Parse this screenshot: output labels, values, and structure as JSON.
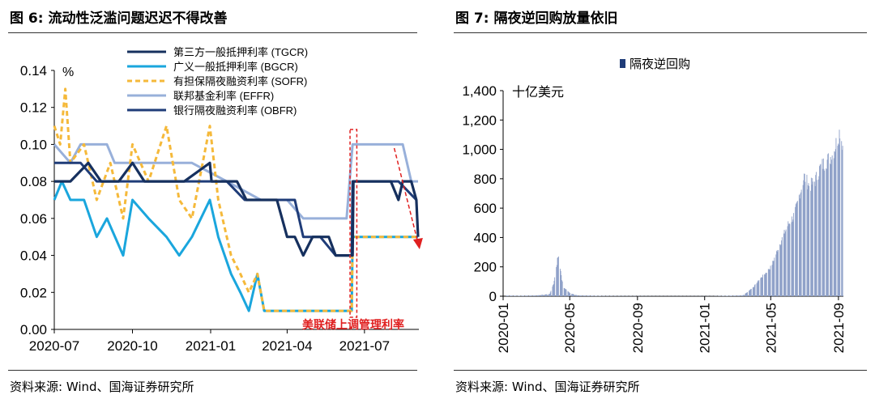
{
  "left": {
    "title": "图 6:  流动性泛滥问题迟迟不得改善",
    "source": "资料来源:  Wind、国海证券研究所",
    "unit": "%",
    "annotation": "美联储上调管理利率",
    "x_ticks": [
      "2020-07",
      "2020-10",
      "2021-01",
      "2021-04",
      "2021-07"
    ],
    "y_ticks": [
      "0.00",
      "0.02",
      "0.04",
      "0.06",
      "0.08",
      "0.10",
      "0.12",
      "0.14"
    ]
  },
  "right": {
    "title": "图 7:  隔夜逆回购放量依旧",
    "source": "资料来源:  Wind、国海证券研究所",
    "unit": "十亿美元",
    "x_ticks": [
      "2020-01",
      "2020-05",
      "2020-09",
      "2021-01",
      "2021-05",
      "2021-09"
    ],
    "y_ticks": [
      "0",
      "200",
      "400",
      "600",
      "800",
      "1,000",
      "1,200",
      "1,400"
    ]
  },
  "chart_data": [
    {
      "type": "line",
      "ylim": [
        0,
        0.14
      ],
      "xlim": [
        "2020-07-01",
        "2021-09-03"
      ],
      "legend_position": "top-right",
      "colors": {
        "TGCR": "#16305e",
        "BGCR": "#1aa6dd",
        "SOFR": "#f5b93a",
        "EFFR": "#98b0da",
        "OBFR": "#1f3c78",
        "annotation": "#e02020"
      },
      "series": [
        {
          "name": "第三方一般抵押利率 (TGCR)",
          "key": "TGCR",
          "points": [
            [
              "2020-07-01",
              0.08
            ],
            [
              "2020-07-20",
              0.08
            ],
            [
              "2020-08-10",
              0.09
            ],
            [
              "2020-08-25",
              0.08
            ],
            [
              "2020-09-15",
              0.08
            ],
            [
              "2020-10-01",
              0.09
            ],
            [
              "2020-10-15",
              0.08
            ],
            [
              "2020-11-10",
              0.08
            ],
            [
              "2020-12-01",
              0.08
            ],
            [
              "2020-12-31",
              0.09
            ],
            [
              "2021-01-02",
              0.08
            ],
            [
              "2021-02-01",
              0.08
            ],
            [
              "2021-02-12",
              0.07
            ],
            [
              "2021-03-20",
              0.07
            ],
            [
              "2021-04-01",
              0.05
            ],
            [
              "2021-04-10",
              0.05
            ],
            [
              "2021-04-20",
              0.04
            ],
            [
              "2021-05-01",
              0.05
            ],
            [
              "2021-05-20",
              0.05
            ],
            [
              "2021-05-28",
              0.04
            ],
            [
              "2021-06-17",
              0.04
            ],
            [
              "2021-06-18",
              0.08
            ],
            [
              "2021-07-20",
              0.08
            ],
            [
              "2021-08-01",
              0.08
            ],
            [
              "2021-08-10",
              0.07
            ],
            [
              "2021-08-15",
              0.08
            ],
            [
              "2021-08-25",
              0.08
            ],
            [
              "2021-08-31",
              0.07
            ],
            [
              "2021-09-02",
              0.05
            ]
          ]
        },
        {
          "name": "广义一般抵押利率 (BGCR)",
          "key": "BGCR",
          "points": [
            [
              "2020-07-01",
              0.07
            ],
            [
              "2020-07-10",
              0.08
            ],
            [
              "2020-07-20",
              0.07
            ],
            [
              "2020-08-05",
              0.07
            ],
            [
              "2020-08-20",
              0.05
            ],
            [
              "2020-09-01",
              0.06
            ],
            [
              "2020-09-20",
              0.04
            ],
            [
              "2020-10-01",
              0.07
            ],
            [
              "2020-10-20",
              0.06
            ],
            [
              "2020-11-10",
              0.05
            ],
            [
              "2020-11-25",
              0.04
            ],
            [
              "2020-12-10",
              0.05
            ],
            [
              "2020-12-31",
              0.07
            ],
            [
              "2021-01-10",
              0.05
            ],
            [
              "2021-01-25",
              0.03
            ],
            [
              "2021-02-05",
              0.02
            ],
            [
              "2021-02-15",
              0.01
            ],
            [
              "2021-02-25",
              0.03
            ],
            [
              "2021-03-05",
              0.01
            ],
            [
              "2021-03-15",
              0.01
            ],
            [
              "2021-06-16",
              0.01
            ],
            [
              "2021-06-17",
              0.05
            ],
            [
              "2021-09-02",
              0.05
            ]
          ]
        },
        {
          "name": "有担保隔夜融资利率 (SOFR)",
          "key": "SOFR",
          "points": [
            [
              "2020-07-01",
              0.11
            ],
            [
              "2020-07-08",
              0.1
            ],
            [
              "2020-07-14",
              0.13
            ],
            [
              "2020-07-20",
              0.09
            ],
            [
              "2020-08-05",
              0.1
            ],
            [
              "2020-08-20",
              0.07
            ],
            [
              "2020-09-05",
              0.09
            ],
            [
              "2020-09-20",
              0.06
            ],
            [
              "2020-10-01",
              0.1
            ],
            [
              "2020-10-20",
              0.08
            ],
            [
              "2020-11-10",
              0.11
            ],
            [
              "2020-11-25",
              0.07
            ],
            [
              "2020-12-10",
              0.06
            ],
            [
              "2020-12-31",
              0.11
            ],
            [
              "2021-01-10",
              0.07
            ],
            [
              "2021-01-25",
              0.04
            ],
            [
              "2021-02-05",
              0.03
            ],
            [
              "2021-02-15",
              0.02
            ],
            [
              "2021-02-25",
              0.03
            ],
            [
              "2021-03-05",
              0.01
            ],
            [
              "2021-03-15",
              0.01
            ],
            [
              "2021-06-16",
              0.01
            ],
            [
              "2021-06-17",
              0.05
            ],
            [
              "2021-09-02",
              0.05
            ]
          ]
        },
        {
          "name": "联邦基金利率 (EFFR)",
          "key": "EFFR",
          "points": [
            [
              "2020-07-01",
              0.1
            ],
            [
              "2020-07-20",
              0.09
            ],
            [
              "2020-08-01",
              0.1
            ],
            [
              "2020-09-01",
              0.1
            ],
            [
              "2020-09-10",
              0.09
            ],
            [
              "2020-10-20",
              0.09
            ],
            [
              "2020-11-10",
              0.09
            ],
            [
              "2020-12-10",
              0.09
            ],
            [
              "2021-01-20",
              0.08
            ],
            [
              "2021-03-01",
              0.07
            ],
            [
              "2021-04-01",
              0.07
            ],
            [
              "2021-04-20",
              0.06
            ],
            [
              "2021-05-15",
              0.06
            ],
            [
              "2021-06-10",
              0.06
            ],
            [
              "2021-06-17",
              0.1
            ],
            [
              "2021-08-15",
              0.1
            ],
            [
              "2021-08-25",
              0.08
            ],
            [
              "2021-09-02",
              0.08
            ]
          ]
        },
        {
          "name": "银行隔夜融资利率 (OBFR)",
          "key": "OBFR",
          "points": [
            [
              "2020-07-01",
              0.09
            ],
            [
              "2020-08-01",
              0.09
            ],
            [
              "2020-08-20",
              0.08
            ],
            [
              "2020-09-10",
              0.08
            ],
            [
              "2020-10-01",
              0.08
            ],
            [
              "2020-11-01",
              0.08
            ],
            [
              "2020-12-01",
              0.08
            ],
            [
              "2021-01-20",
              0.08
            ],
            [
              "2021-02-10",
              0.07
            ],
            [
              "2021-04-10",
              0.07
            ],
            [
              "2021-04-20",
              0.05
            ],
            [
              "2021-05-10",
              0.05
            ],
            [
              "2021-05-28",
              0.04
            ],
            [
              "2021-06-16",
              0.04
            ],
            [
              "2021-06-17",
              0.08
            ],
            [
              "2021-08-10",
              0.08
            ],
            [
              "2021-08-31",
              0.07
            ]
          ]
        }
      ]
    },
    {
      "type": "bar",
      "ylim": [
        0,
        1400
      ],
      "xlim": [
        "2020-01-01",
        "2021-09-10"
      ],
      "legend_position": "top",
      "series": [
        {
          "name": "隔夜逆回购",
          "color": "#8ea0c8",
          "points": [
            [
              "2020-01-05",
              4
            ],
            [
              "2020-02-01",
              3
            ],
            [
              "2020-03-01",
              5
            ],
            [
              "2020-03-25",
              15
            ],
            [
              "2020-04-01",
              90
            ],
            [
              "2020-04-05",
              180
            ],
            [
              "2020-04-08",
              260
            ],
            [
              "2020-04-10",
              285
            ],
            [
              "2020-04-13",
              200
            ],
            [
              "2020-04-16",
              120
            ],
            [
              "2020-04-20",
              60
            ],
            [
              "2020-05-01",
              20
            ],
            [
              "2020-05-15",
              5
            ],
            [
              "2020-07-01",
              2
            ],
            [
              "2020-10-01",
              1
            ],
            [
              "2021-01-15",
              1
            ],
            [
              "2021-03-10",
              5
            ],
            [
              "2021-03-20",
              30
            ],
            [
              "2021-03-31",
              70
            ],
            [
              "2021-04-10",
              120
            ],
            [
              "2021-04-20",
              160
            ],
            [
              "2021-05-01",
              210
            ],
            [
              "2021-05-10",
              300
            ],
            [
              "2021-05-20",
              400
            ],
            [
              "2021-06-01",
              510
            ],
            [
              "2021-06-10",
              560
            ],
            [
              "2021-06-17",
              640
            ],
            [
              "2021-06-30",
              850
            ],
            [
              "2021-07-10",
              780
            ],
            [
              "2021-07-20",
              820
            ],
            [
              "2021-07-30",
              920
            ],
            [
              "2021-08-10",
              960
            ],
            [
              "2021-08-20",
              1000
            ],
            [
              "2021-08-31",
              1130
            ],
            [
              "2021-09-03",
              1180
            ],
            [
              "2021-09-08",
              1070
            ]
          ]
        }
      ]
    }
  ]
}
